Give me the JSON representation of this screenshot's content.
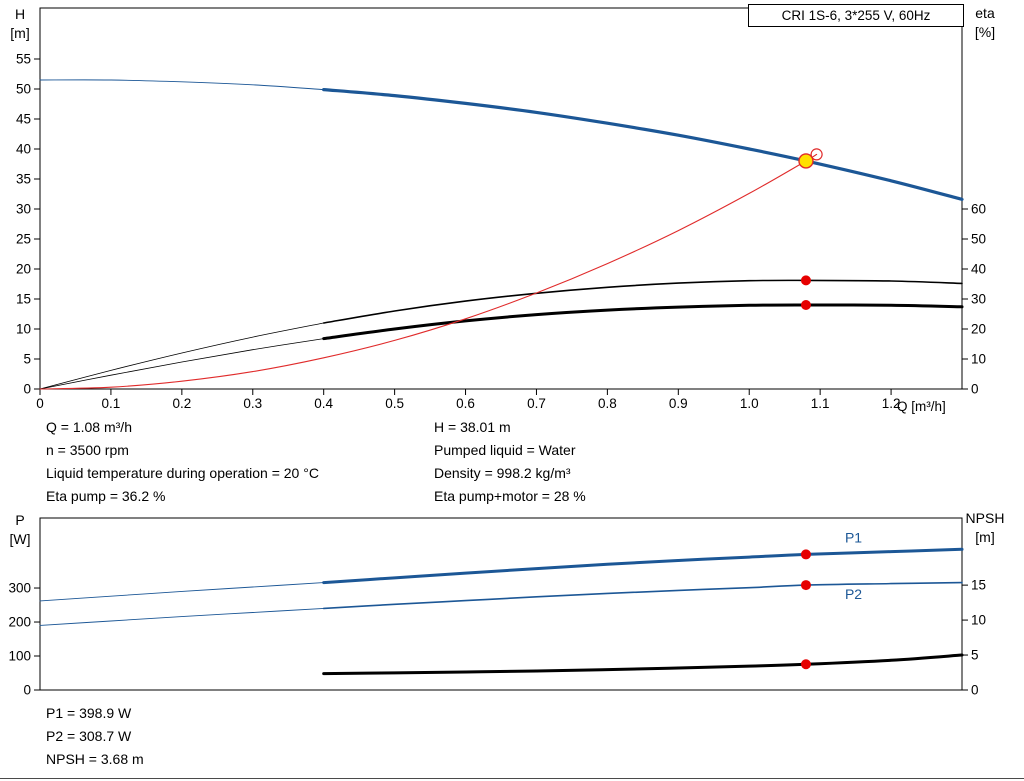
{
  "annotations": {
    "left": [
      "Q = 1.08 m³/h",
      "n = 3500 rpm",
      "Liquid temperature during operation = 20 °C",
      "Eta pump = 36.2 %"
    ],
    "right": [
      "H = 38.01 m",
      "Pumped liquid = Water",
      "Density = 998.2 kg/m³",
      "Eta pump+motor = 28 %"
    ],
    "bottom": [
      "P1 = 398.9 W",
      "P2 = 308.7 W",
      "NPSH = 3.68 m"
    ]
  },
  "colors": {
    "curve_blue": "#1c5796",
    "curve_red": "#e02b2b",
    "dot_red": "#e60000",
    "duty_yellow": "#ffe000",
    "curve_black": "#000000"
  },
  "chart_data": [
    {
      "type": "line",
      "title": "CRI 1S-6, 3*255 V, 60Hz",
      "xlabel": "Q [m³/h]",
      "ylabel_left": [
        "H",
        "[m]"
      ],
      "ylabel_right": [
        "eta",
        "[%]"
      ],
      "xlim": [
        0,
        1.3
      ],
      "ylim_left": [
        0,
        63.5
      ],
      "ylim_right": [
        0,
        127
      ],
      "grid": false,
      "x_ticks": [
        [
          0,
          "0"
        ],
        [
          0.1,
          "0.1"
        ],
        [
          0.2,
          "0.2"
        ],
        [
          0.3,
          "0.3"
        ],
        [
          0.4,
          "0.4"
        ],
        [
          0.5,
          "0.5"
        ],
        [
          0.6,
          "0.6"
        ],
        [
          0.7,
          "0.7"
        ],
        [
          0.8,
          "0.8"
        ],
        [
          0.9,
          "0.9"
        ],
        [
          1.0,
          "1.0"
        ],
        [
          1.1,
          "1.1"
        ],
        [
          1.2,
          "1.2"
        ]
      ],
      "y_ticks_left": [
        [
          0,
          "0"
        ],
        [
          5,
          "5"
        ],
        [
          10,
          "10"
        ],
        [
          15,
          "15"
        ],
        [
          20,
          "20"
        ],
        [
          25,
          "25"
        ],
        [
          30,
          "30"
        ],
        [
          35,
          "35"
        ],
        [
          40,
          "40"
        ],
        [
          45,
          "45"
        ],
        [
          50,
          "50"
        ],
        [
          55,
          "55"
        ]
      ],
      "y_ticks_right": [
        [
          0,
          "0"
        ],
        [
          10,
          "10"
        ],
        [
          20,
          "20"
        ],
        [
          30,
          "30"
        ],
        [
          40,
          "40"
        ],
        [
          50,
          "50"
        ],
        [
          60,
          "60"
        ]
      ],
      "series": [
        {
          "name": "H curve",
          "axis": "left",
          "color": "#1c5796",
          "width": 3.2,
          "thin_width": 0.9,
          "thin_until": 0.4,
          "points": [
            [
              0,
              51.5
            ],
            [
              0.1,
              51.5
            ],
            [
              0.2,
              51.2
            ],
            [
              0.3,
              50.7
            ],
            [
              0.4,
              49.9
            ],
            [
              0.5,
              48.9
            ],
            [
              0.6,
              47.6
            ],
            [
              0.7,
              46.1
            ],
            [
              0.8,
              44.3
            ],
            [
              0.9,
              42.3
            ],
            [
              1.0,
              40.0
            ],
            [
              1.08,
              38.01
            ],
            [
              1.2,
              34.7
            ],
            [
              1.3,
              31.6
            ]
          ]
        },
        {
          "name": "eta pump",
          "axis": "right",
          "color": "#000000",
          "width": 1.6,
          "thin_width": 0.8,
          "thin_until": 0.4,
          "points": [
            [
              0,
              0
            ],
            [
              0.1,
              6.2
            ],
            [
              0.2,
              12.0
            ],
            [
              0.3,
              17.3
            ],
            [
              0.4,
              22.0
            ],
            [
              0.5,
              26.0
            ],
            [
              0.6,
              29.3
            ],
            [
              0.7,
              31.9
            ],
            [
              0.8,
              33.9
            ],
            [
              0.9,
              35.3
            ],
            [
              1.0,
              36.1
            ],
            [
              1.08,
              36.2
            ],
            [
              1.2,
              36.0
            ],
            [
              1.3,
              35.2
            ]
          ]
        },
        {
          "name": "eta pump motor",
          "axis": "right",
          "color": "#000000",
          "width": 3,
          "thin_width": 0.8,
          "thin_until": 0.4,
          "points": [
            [
              0,
              0
            ],
            [
              0.1,
              4.6
            ],
            [
              0.2,
              9.0
            ],
            [
              0.3,
              13.1
            ],
            [
              0.4,
              16.8
            ],
            [
              0.5,
              20.0
            ],
            [
              0.6,
              22.7
            ],
            [
              0.7,
              24.8
            ],
            [
              0.8,
              26.3
            ],
            [
              0.9,
              27.3
            ],
            [
              1.0,
              27.9
            ],
            [
              1.08,
              28.0
            ],
            [
              1.2,
              27.9
            ],
            [
              1.3,
              27.4
            ]
          ]
        },
        {
          "name": "system curve",
          "axis": "left",
          "color": "#e02b2b",
          "width": 1.1,
          "thin_width": 1.1,
          "thin_until": 0,
          "points": [
            [
              0,
              0
            ],
            [
              0.1,
              0.3
            ],
            [
              0.2,
              1.3
            ],
            [
              0.3,
              2.9
            ],
            [
              0.4,
              5.2
            ],
            [
              0.5,
              8.1
            ],
            [
              0.6,
              11.7
            ],
            [
              0.7,
              16.0
            ],
            [
              0.8,
              20.9
            ],
            [
              0.9,
              26.4
            ],
            [
              1.0,
              32.6
            ],
            [
              1.08,
              38.01
            ],
            [
              1.095,
              39.1
            ]
          ]
        }
      ],
      "markers": [
        {
          "name": "duty-point-marker",
          "x": 1.08,
          "value": 38.01,
          "axis": "left",
          "r": 7,
          "fill": "#ffe000",
          "stroke": "#e02b2b",
          "stroke_width": 1.4
        },
        {
          "name": "system-curve-end-marker",
          "x": 1.095,
          "value": 39.1,
          "axis": "left",
          "r": 5.5,
          "fill": "none",
          "stroke": "#e02b2b",
          "stroke_width": 1.2
        },
        {
          "name": "eta-pump-marker",
          "x": 1.08,
          "value": 36.2,
          "axis": "right",
          "r": 5,
          "fill": "#e60000",
          "stroke": "none",
          "stroke_width": 0
        },
        {
          "name": "eta-pump-motor-marker",
          "x": 1.08,
          "value": 28,
          "axis": "right",
          "r": 5,
          "fill": "#e60000",
          "stroke": "none",
          "stroke_width": 0
        }
      ]
    },
    {
      "type": "line",
      "title": "",
      "xlabel": "",
      "ylabel_left": [
        "P",
        "[W]"
      ],
      "ylabel_right": [
        "NPSH",
        "[m]"
      ],
      "xlim": [
        0,
        1.3
      ],
      "ylim_left": [
        0,
        506
      ],
      "ylim_right": [
        0,
        24.6
      ],
      "grid": false,
      "x_ticks": [],
      "y_ticks_left": [
        [
          0,
          "0"
        ],
        [
          100,
          "100"
        ],
        [
          200,
          "200"
        ],
        [
          300,
          "300"
        ]
      ],
      "y_ticks_right": [
        [
          0,
          "0"
        ],
        [
          5,
          "5"
        ],
        [
          10,
          "10"
        ],
        [
          15,
          "15"
        ]
      ],
      "series": [
        {
          "name": "P1 curve",
          "axis": "left",
          "color": "#1c5796",
          "width": 3,
          "thin_width": 0.9,
          "thin_until": 0.4,
          "points": [
            [
              0,
              262
            ],
            [
              0.1,
              276
            ],
            [
              0.2,
              290
            ],
            [
              0.3,
              303
            ],
            [
              0.4,
              316
            ],
            [
              0.5,
              330
            ],
            [
              0.6,
              344
            ],
            [
              0.7,
              357
            ],
            [
              0.8,
              370
            ],
            [
              0.9,
              381
            ],
            [
              1.0,
              391
            ],
            [
              1.08,
              398.9
            ],
            [
              1.2,
              407
            ],
            [
              1.3,
              414
            ]
          ]
        },
        {
          "name": "P2 curve",
          "axis": "left",
          "color": "#1c5796",
          "width": 1.6,
          "thin_width": 0.9,
          "thin_until": 0.4,
          "points": [
            [
              0,
              190
            ],
            [
              0.1,
              203
            ],
            [
              0.2,
              216
            ],
            [
              0.3,
              228
            ],
            [
              0.4,
              240
            ],
            [
              0.5,
              252
            ],
            [
              0.6,
              263
            ],
            [
              0.7,
              274
            ],
            [
              0.8,
              284
            ],
            [
              0.9,
              293
            ],
            [
              1.0,
              301
            ],
            [
              1.08,
              308.7
            ],
            [
              1.2,
              313
            ],
            [
              1.3,
              316
            ]
          ]
        },
        {
          "name": "NPSH curve",
          "axis": "right",
          "color": "#000000",
          "width": 3,
          "thin_width": 3,
          "thin_until": 0,
          "points": [
            [
              0.4,
              2.35
            ],
            [
              0.5,
              2.45
            ],
            [
              0.6,
              2.58
            ],
            [
              0.7,
              2.72
            ],
            [
              0.8,
              2.92
            ],
            [
              0.9,
              3.15
            ],
            [
              1.0,
              3.42
            ],
            [
              1.08,
              3.68
            ],
            [
              1.2,
              4.25
            ],
            [
              1.3,
              5.0
            ]
          ]
        }
      ],
      "series_labels": [
        {
          "text": "P1",
          "x": 1.135,
          "value": 448,
          "axis": "left",
          "color": "#1c5796"
        },
        {
          "text": "P2",
          "x": 1.135,
          "value": 283,
          "axis": "left",
          "color": "#1c5796"
        }
      ],
      "markers": [
        {
          "name": "p1-marker",
          "x": 1.08,
          "value": 398.9,
          "axis": "left",
          "r": 5,
          "fill": "#e60000",
          "stroke": "none",
          "stroke_width": 0
        },
        {
          "name": "p2-marker",
          "x": 1.08,
          "value": 308.7,
          "axis": "left",
          "r": 5,
          "fill": "#e60000",
          "stroke": "none",
          "stroke_width": 0
        },
        {
          "name": "npsh-marker",
          "x": 1.08,
          "value": 3.68,
          "axis": "right",
          "r": 5,
          "fill": "#e60000",
          "stroke": "none",
          "stroke_width": 0
        }
      ]
    }
  ]
}
